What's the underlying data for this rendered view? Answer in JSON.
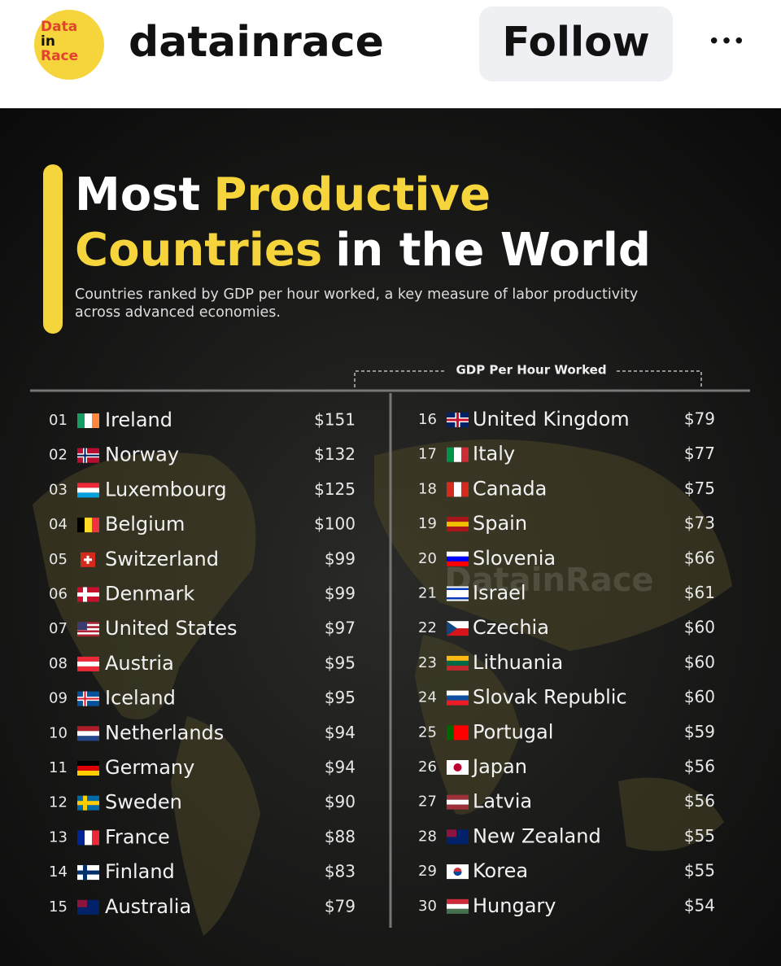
{
  "header": {
    "avatar_lines": [
      "Data",
      "in",
      "Race"
    ],
    "username": "datainrace",
    "follow_button": "Follow",
    "menu": "•••"
  },
  "post": {
    "title": [
      [
        {
          "text": "Most",
          "highlight": false
        },
        {
          "text": "Productive",
          "highlight": true
        }
      ],
      [
        {
          "text": "Countries",
          "highlight": true
        },
        {
          "text": "in the World",
          "highlight": false
        }
      ]
    ],
    "subtitle": [
      "Countries ranked by GDP per hour worked, a key measure of labor productivity",
      "across advanced economies."
    ],
    "column_header": "GDP Per Hour Worked",
    "watermark": "DatainRace",
    "rows": [
      {
        "rank": "01",
        "country": "Ireland",
        "value": "$151"
      },
      {
        "rank": "02",
        "country": "Norway",
        "value": "$132"
      },
      {
        "rank": "03",
        "country": "Luxembourg",
        "value": "$125"
      },
      {
        "rank": "04",
        "country": "Belgium",
        "value": "$100"
      },
      {
        "rank": "05",
        "country": "Switzerland",
        "value": "$99"
      },
      {
        "rank": "06",
        "country": "Denmark",
        "value": "$99"
      },
      {
        "rank": "07",
        "country": "United States",
        "value": "$97"
      },
      {
        "rank": "08",
        "country": "Austria",
        "value": "$95"
      },
      {
        "rank": "09",
        "country": "Iceland",
        "value": "$95"
      },
      {
        "rank": "10",
        "country": "Netherlands",
        "value": "$94"
      },
      {
        "rank": "11",
        "country": "Germany",
        "value": "$94"
      },
      {
        "rank": "12",
        "country": "Sweden",
        "value": "$90"
      },
      {
        "rank": "13",
        "country": "France",
        "value": "$88"
      },
      {
        "rank": "14",
        "country": "Finland",
        "value": "$83"
      },
      {
        "rank": "15",
        "country": "Australia",
        "value": "$79"
      },
      {
        "rank": "16",
        "country": "United Kingdom",
        "value": "$79"
      },
      {
        "rank": "17",
        "country": "Italy",
        "value": "$77"
      },
      {
        "rank": "18",
        "country": "Canada",
        "value": "$75"
      },
      {
        "rank": "19",
        "country": "Spain",
        "value": "$73"
      },
      {
        "rank": "20",
        "country": "Slovenia",
        "value": "$66"
      },
      {
        "rank": "21",
        "country": "Israel",
        "value": "$61"
      },
      {
        "rank": "22",
        "country": "Czechia",
        "value": "$60"
      },
      {
        "rank": "23",
        "country": "Lithuania",
        "value": "$60"
      },
      {
        "rank": "24",
        "country": "Slovak Republic",
        "value": "$60"
      },
      {
        "rank": "25",
        "country": "Portugal",
        "value": "$59"
      },
      {
        "rank": "26",
        "country": "Japan",
        "value": "$56"
      },
      {
        "rank": "27",
        "country": "Latvia",
        "value": "$56"
      },
      {
        "rank": "28",
        "country": "New Zealand",
        "value": "$55"
      },
      {
        "rank": "29",
        "country": "Korea",
        "value": "$55"
      },
      {
        "rank": "30",
        "country": "Hungary",
        "value": "$54"
      }
    ]
  }
}
